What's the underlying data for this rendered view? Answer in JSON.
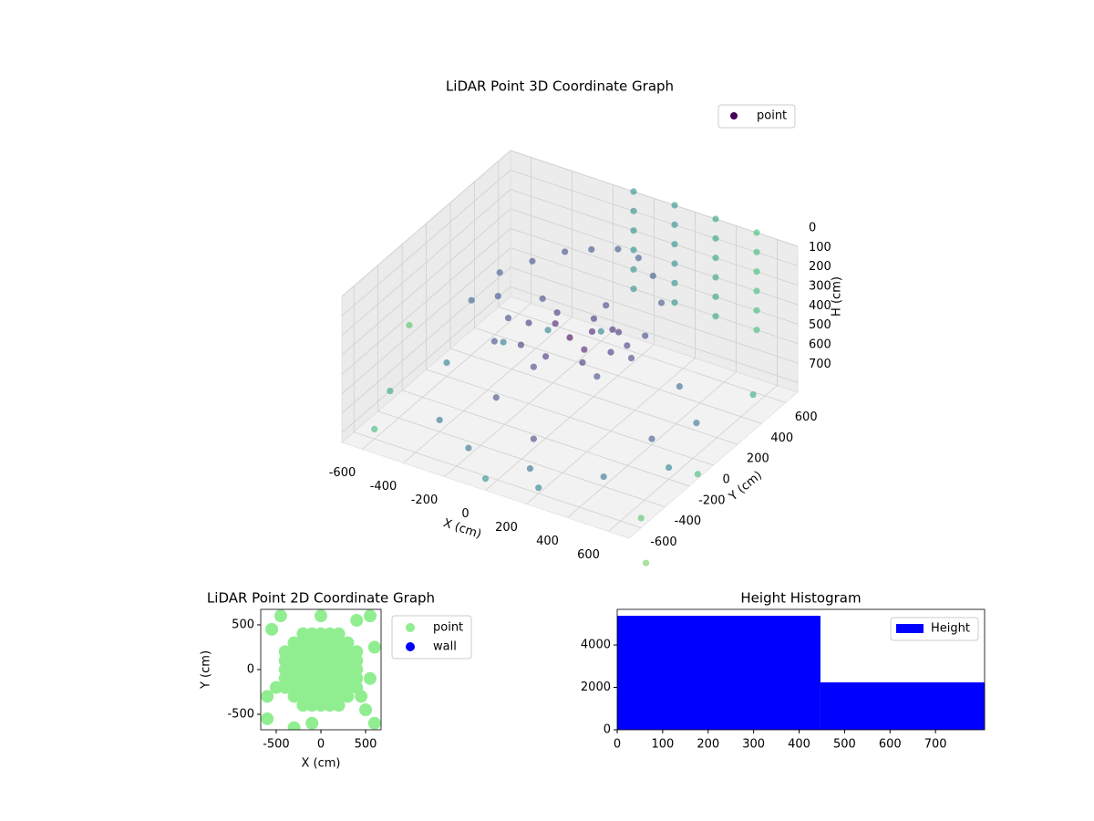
{
  "chart_data": [
    {
      "type": "scatter3d",
      "title": "LiDAR Point 3D Coordinate Graph",
      "legend_loc": "upper right",
      "xlabel": "X (cm)",
      "ylabel": "Y (cm)",
      "zlabel": "H (cm)",
      "xlim": [
        -700,
        700
      ],
      "ylim": [
        -700,
        700
      ],
      "zlim": [
        0,
        750
      ],
      "invert_z": true,
      "xticks": [
        -600,
        -400,
        -200,
        0,
        200,
        400,
        600
      ],
      "yticks": [
        -600,
        -400,
        -200,
        0,
        200,
        400,
        600
      ],
      "zticks": [
        0,
        100,
        200,
        300,
        400,
        500,
        600,
        700
      ],
      "colormap": [
        "#440154",
        "#482878",
        "#3e4a89",
        "#31688e",
        "#26828e",
        "#35b779",
        "#6ece58"
      ],
      "color_range": [
        0,
        1000
      ],
      "alpha": 0.6,
      "series": [
        {
          "name": "point",
          "color": "#440154",
          "x": [
            0,
            200,
            -200,
            0,
            0,
            150,
            -150,
            150,
            -150,
            300,
            -300,
            0,
            0,
            250,
            -250,
            250,
            -250,
            100,
            -100,
            50,
            -400,
            -300,
            -200,
            -100,
            0,
            100,
            200,
            300,
            -350,
            -450,
            150,
            250,
            -600,
            -400,
            -200,
            0,
            200,
            400,
            600,
            500,
            300,
            -500,
            -600,
            -300,
            100,
            600,
            -200,
            400,
            -700,
            700,
            0,
            -400,
            -100,
            -100,
            -100,
            -100,
            -100,
            -100,
            100,
            100,
            100,
            100,
            100,
            100,
            300,
            300,
            300,
            300,
            300,
            300,
            500,
            500,
            500,
            500,
            500,
            500,
            900,
            -900,
            800,
            1000
          ],
          "y": [
            0,
            0,
            0,
            200,
            -200,
            150,
            150,
            -150,
            -150,
            0,
            0,
            300,
            -300,
            200,
            -200,
            -200,
            200,
            -50,
            50,
            100,
            100,
            200,
            300,
            350,
            400,
            400,
            350,
            250,
            0,
            -50,
            100,
            50,
            -600,
            -400,
            -500,
            -300,
            -600,
            -400,
            -200,
            200,
            400,
            300,
            0,
            -100,
            -500,
            500,
            600,
            0,
            -300,
            -600,
            -700,
            500,
            700,
            700,
            700,
            700,
            700,
            700,
            700,
            700,
            700,
            700,
            700,
            700,
            700,
            700,
            700,
            700,
            700,
            700,
            700,
            700,
            700,
            700,
            700,
            700,
            -900,
            200,
            -300,
            400
          ],
          "z": [
            340,
            345,
            335,
            350,
            330,
            340,
            345,
            335,
            350,
            340,
            345,
            335,
            330,
            350,
            340,
            345,
            335,
            340,
            330,
            345,
            200,
            160,
            130,
            110,
            100,
            110,
            140,
            190,
            250,
            280,
            300,
            320,
            700,
            690,
            710,
            700,
            720,
            700,
            690,
            710,
            700,
            700,
            680,
            700,
            710,
            690,
            700,
            720,
            700,
            700,
            690,
            710,
            0,
            100,
            200,
            300,
            400,
            500,
            0,
            100,
            200,
            300,
            400,
            500,
            0,
            100,
            200,
            300,
            400,
            500,
            0,
            100,
            200,
            300,
            400,
            500,
            700,
            700,
            600,
            650
          ]
        }
      ]
    },
    {
      "type": "scatter",
      "title": "LiDAR Point 2D Coordinate Graph",
      "xlabel": "X (cm)",
      "ylabel": "Y (cm)",
      "xlim": [
        -673,
        673
      ],
      "ylim": [
        -673,
        673
      ],
      "xticks": [
        -500,
        0,
        500
      ],
      "yticks": [
        -500,
        0,
        500
      ],
      "legend_loc": "outside right",
      "series": [
        {
          "name": "point",
          "color": "#90ee90",
          "x": [
            -400,
            -400,
            -400,
            -400,
            -400,
            -300,
            -300,
            -300,
            -300,
            -300,
            -300,
            -300,
            -200,
            -200,
            -200,
            -200,
            -200,
            -200,
            -200,
            -200,
            -200,
            -100,
            -100,
            -100,
            -100,
            -100,
            -100,
            -100,
            -100,
            -100,
            0,
            0,
            0,
            0,
            0,
            0,
            0,
            0,
            0,
            100,
            100,
            100,
            100,
            100,
            100,
            100,
            100,
            100,
            200,
            200,
            200,
            200,
            200,
            200,
            200,
            200,
            200,
            300,
            300,
            300,
            300,
            300,
            300,
            300,
            400,
            400,
            400,
            400,
            400,
            550,
            600,
            -600,
            500,
            -550,
            -600,
            400,
            600,
            -300,
            0,
            -450,
            -500,
            450,
            -100,
            550
          ],
          "y": [
            -200,
            -100,
            0,
            100,
            200,
            -300,
            -200,
            -100,
            0,
            100,
            200,
            300,
            -400,
            -300,
            -200,
            -100,
            0,
            100,
            200,
            300,
            400,
            -400,
            -300,
            -200,
            -100,
            0,
            100,
            200,
            300,
            400,
            -400,
            -300,
            -200,
            -100,
            0,
            100,
            200,
            300,
            400,
            -400,
            -300,
            -200,
            -100,
            0,
            100,
            200,
            300,
            400,
            -400,
            -300,
            -200,
            -100,
            0,
            100,
            200,
            300,
            400,
            -300,
            -200,
            -100,
            0,
            100,
            200,
            300,
            -200,
            -100,
            0,
            100,
            200,
            600,
            250,
            -550,
            -450,
            450,
            -300,
            550,
            -600,
            -650,
            600,
            600,
            -200,
            -300,
            -600,
            -100
          ]
        },
        {
          "name": "wall",
          "color": "#0000ff",
          "x": [],
          "y": []
        }
      ]
    },
    {
      "type": "histogram",
      "title": "Height Histogram",
      "name": "Height",
      "color": "#0000ff",
      "legend_loc": "upper right",
      "bins": [
        0,
        447,
        808
      ],
      "counts": [
        5376,
        2236
      ],
      "xlim": [
        0,
        808
      ],
      "ylim": [
        0,
        5680
      ],
      "xticks": [
        0,
        100,
        200,
        300,
        400,
        500,
        600,
        700
      ],
      "yticks": [
        0,
        2000,
        4000
      ]
    }
  ]
}
